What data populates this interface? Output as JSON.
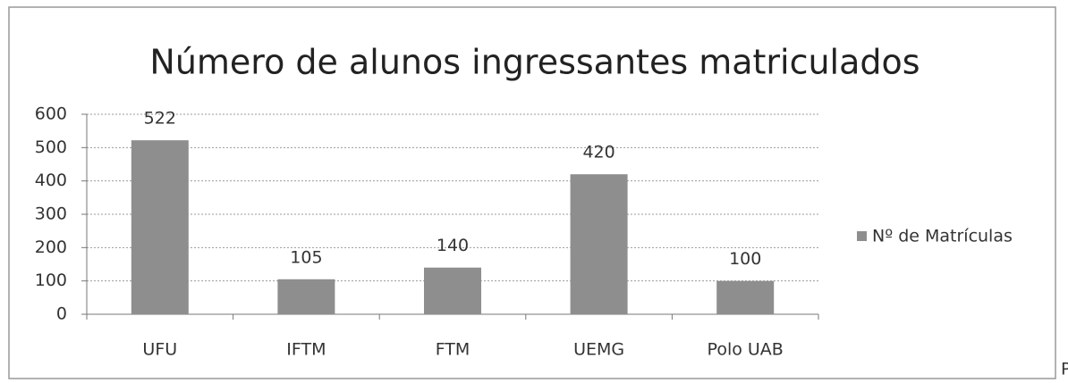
{
  "chart_data": {
    "type": "bar",
    "title": "Número  de alunos ingressantes matriculados",
    "categories": [
      "UFU",
      "IFTM",
      "FTM",
      "UEMG",
      "Polo UAB"
    ],
    "series": [
      {
        "name": "Nº de Matrículas",
        "color": "#8e8e8e",
        "values": [
          522,
          105,
          140,
          420,
          100
        ]
      }
    ],
    "ylim": [
      0,
      600
    ],
    "yticks": [
      0,
      100,
      200,
      300,
      400,
      500,
      600
    ],
    "grid": true,
    "legend": "right"
  },
  "trailing_text": "P"
}
